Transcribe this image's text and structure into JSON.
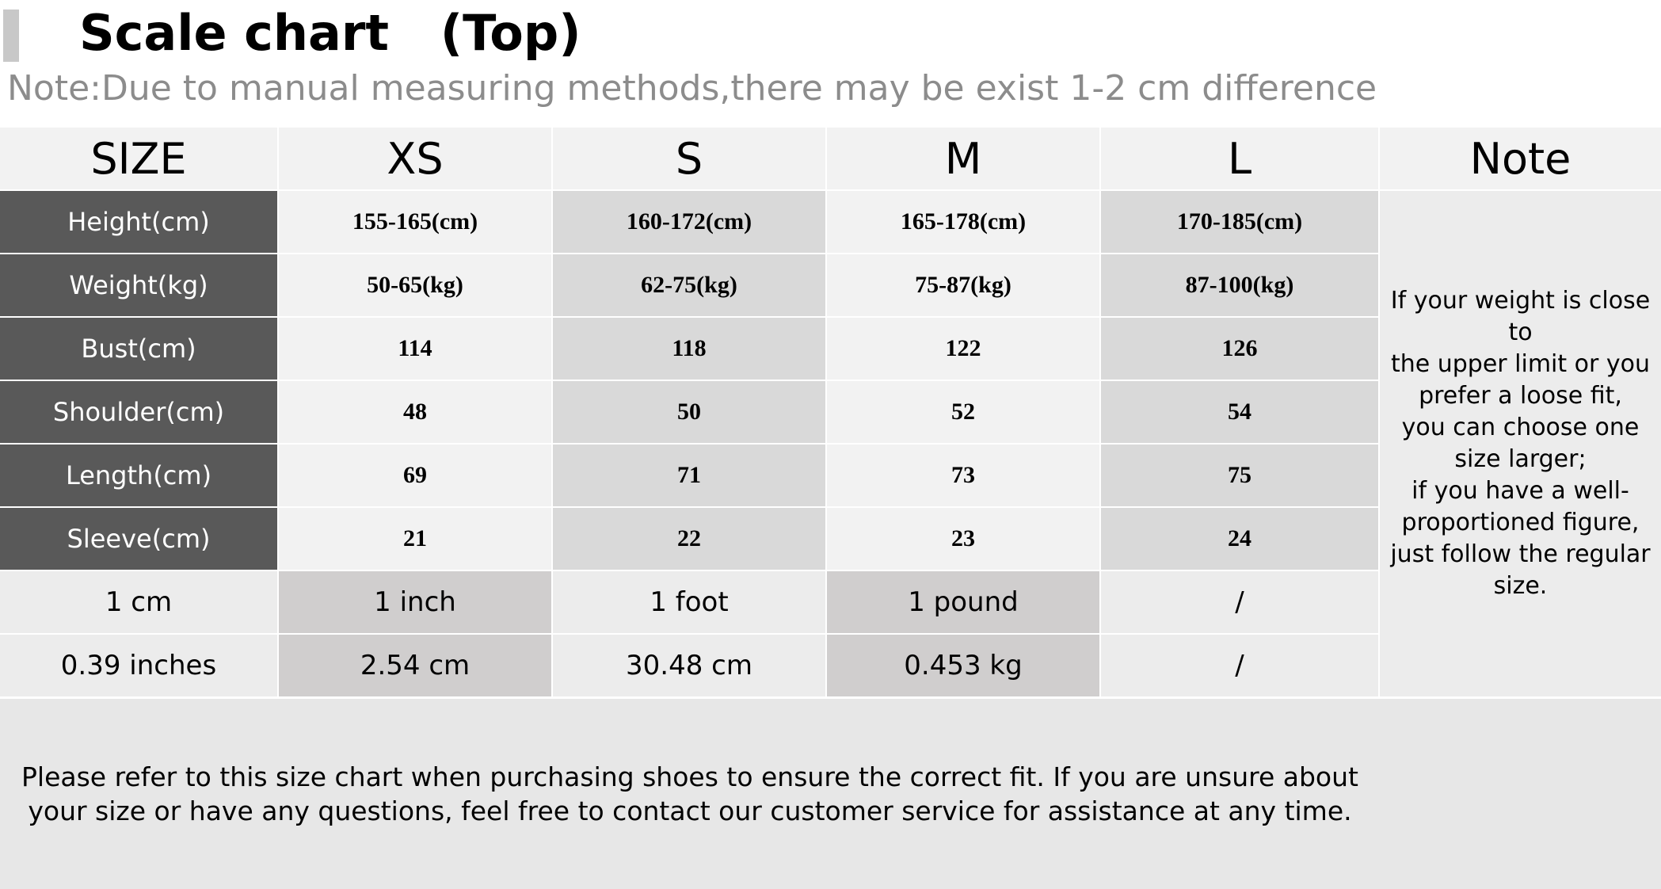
{
  "title": "Scale chart   (Top)",
  "subtitle": "Note:Due to manual measuring methods,there may be exist 1-2 cm difference",
  "table": {
    "headers": [
      "SIZE",
      "XS",
      "S",
      "M",
      "L",
      "Note"
    ],
    "rows": [
      {
        "label": "Height(cm)",
        "values": [
          "155-165(cm)",
          "160-172(cm)",
          "165-178(cm)",
          "170-185(cm)"
        ]
      },
      {
        "label": "Weight(kg)",
        "values": [
          "50-65(kg)",
          "62-75(kg)",
          "75-87(kg)",
          "87-100(kg)"
        ]
      },
      {
        "label": "Bust(cm)",
        "values": [
          "114",
          "118",
          "122",
          "126"
        ]
      },
      {
        "label": "Shoulder(cm)",
        "values": [
          "48",
          "50",
          "52",
          "54"
        ]
      },
      {
        "label": "Length(cm)",
        "values": [
          "69",
          "71",
          "73",
          "75"
        ]
      },
      {
        "label": "Sleeve(cm)",
        "values": [
          "21",
          "22",
          "23",
          "24"
        ]
      }
    ],
    "conversion": [
      [
        "1 cm",
        "1 inch",
        "1 foot",
        "1 pound",
        "/"
      ],
      [
        "0.39 inches",
        "2.54 cm",
        "30.48 cm",
        "0.453 kg",
        "/"
      ]
    ],
    "note": "If your weight is close to\nthe upper limit or you\nprefer a loose fit,\nyou can choose one\nsize larger;\nif you have a well-\nproportioned figure,\njust follow the regular\nsize."
  },
  "footer": "Please refer to this size chart when purchasing shoes to ensure the correct fit. If you are unsure about your size or have any questions, feel free to contact our customer service for assistance at any time.",
  "colors": {
    "label_bg": "#595959",
    "header_bg": "#f2f2f2",
    "alt_bg": "#d9d9d9",
    "subtitle": "#8c8c8c"
  }
}
